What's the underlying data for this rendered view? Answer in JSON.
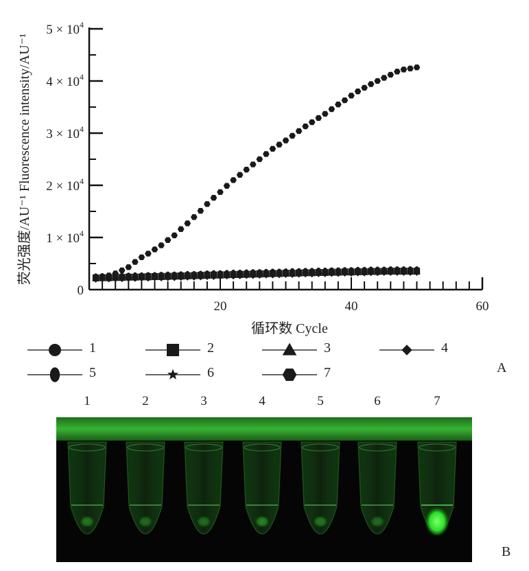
{
  "chart_data": {
    "type": "scatter",
    "xlabel": "循环数 Cycle",
    "ylabel": "荧光强度/AU⁻¹ Fluorescence  intensity/AU⁻¹",
    "xlim": [
      0,
      60
    ],
    "ylim": [
      0,
      50000
    ],
    "x_ticks": [
      20,
      40,
      60
    ],
    "x_tick_labels": [
      "20",
      "40",
      "60"
    ],
    "y_ticks": [
      0,
      10000,
      20000,
      30000,
      40000,
      50000
    ],
    "y_tick_labels": [
      {
        "base": "0",
        "exp": ""
      },
      {
        "base": "1 × 10",
        "exp": "4"
      },
      {
        "base": "2 × 10",
        "exp": "4"
      },
      {
        "base": "3 × 10",
        "exp": "4"
      },
      {
        "base": "4 × 10",
        "exp": "4"
      },
      {
        "base": "5 × 10",
        "exp": "4"
      }
    ],
    "grid": false,
    "marker_color": "#1a1a1a",
    "x": [
      1,
      2,
      3,
      4,
      5,
      6,
      7,
      8,
      9,
      10,
      11,
      12,
      13,
      14,
      15,
      16,
      17,
      18,
      19,
      20,
      21,
      22,
      23,
      24,
      25,
      26,
      27,
      28,
      29,
      30,
      31,
      32,
      33,
      34,
      35,
      36,
      37,
      38,
      39,
      40,
      41,
      42,
      43,
      44,
      45,
      46,
      47,
      48,
      49,
      50
    ],
    "series": [
      {
        "name": "1",
        "marker": "circle",
        "values": [
          2200,
          2250,
          2300,
          2300,
          2350,
          2350,
          2400,
          2400,
          2450,
          2450,
          2500,
          2500,
          2550,
          2600,
          2600,
          2650,
          2700,
          2700,
          2750,
          2800,
          2800,
          2850,
          2900,
          2900,
          2950,
          3000,
          3000,
          3050,
          3100,
          3100,
          3150,
          3150,
          3200,
          3200,
          3250,
          3300,
          3300,
          3350,
          3350,
          3400,
          3400,
          3450,
          3450,
          3500,
          3500,
          3500,
          3550,
          3550,
          3550,
          3550
        ]
      },
      {
        "name": "2",
        "marker": "square",
        "values": [
          2300,
          2350,
          2350,
          2400,
          2400,
          2450,
          2450,
          2500,
          2550,
          2550,
          2600,
          2600,
          2650,
          2700,
          2700,
          2750,
          2800,
          2850,
          2850,
          2900,
          2900,
          2950,
          3000,
          3000,
          3050,
          3100,
          3100,
          3150,
          3150,
          3200,
          3200,
          3250,
          3300,
          3300,
          3350,
          3350,
          3400,
          3400,
          3450,
          3450,
          3500,
          3500,
          3550,
          3550,
          3550,
          3600,
          3600,
          3600,
          3600,
          3600
        ]
      },
      {
        "name": "3",
        "marker": "triangle",
        "values": [
          2100,
          2150,
          2150,
          2200,
          2200,
          2250,
          2250,
          2300,
          2300,
          2350,
          2350,
          2400,
          2450,
          2450,
          2500,
          2550,
          2550,
          2600,
          2650,
          2650,
          2700,
          2750,
          2750,
          2800,
          2850,
          2850,
          2900,
          2950,
          2950,
          3000,
          3000,
          3050,
          3100,
          3100,
          3150,
          3150,
          3200,
          3200,
          3250,
          3250,
          3300,
          3300,
          3350,
          3350,
          3400,
          3400,
          3400,
          3400,
          3400,
          3400
        ]
      },
      {
        "name": "4",
        "marker": "diamond",
        "values": [
          2000,
          2050,
          2050,
          2100,
          2100,
          2150,
          2150,
          2200,
          2200,
          2250,
          2250,
          2300,
          2300,
          2350,
          2400,
          2400,
          2450,
          2500,
          2500,
          2550,
          2600,
          2600,
          2650,
          2700,
          2700,
          2750,
          2800,
          2800,
          2850,
          2900,
          2900,
          2950,
          3000,
          3000,
          3050,
          3050,
          3100,
          3100,
          3150,
          3150,
          3200,
          3200,
          3250,
          3250,
          3300,
          3300,
          3300,
          3300,
          3300,
          3300
        ]
      },
      {
        "name": "5",
        "marker": "ellipse",
        "values": [
          2400,
          2450,
          2450,
          2500,
          2500,
          2550,
          2600,
          2600,
          2650,
          2650,
          2700,
          2750,
          2750,
          2800,
          2850,
          2850,
          2900,
          2950,
          3000,
          3000,
          3050,
          3100,
          3100,
          3150,
          3200,
          3200,
          3250,
          3300,
          3300,
          3350,
          3400,
          3400,
          3450,
          3450,
          3500,
          3500,
          3550,
          3550,
          3600,
          3600,
          3650,
          3650,
          3700,
          3700,
          3700,
          3750,
          3750,
          3750,
          3750,
          3750
        ]
      },
      {
        "name": "6",
        "marker": "star",
        "values": [
          2150,
          2200,
          2200,
          2250,
          2250,
          2300,
          2300,
          2350,
          2350,
          2400,
          2400,
          2450,
          2450,
          2500,
          2550,
          2550,
          2600,
          2650,
          2650,
          2700,
          2750,
          2750,
          2800,
          2850,
          2850,
          2900,
          2950,
          2950,
          3000,
          3050,
          3050,
          3100,
          3150,
          3150,
          3200,
          3200,
          3250,
          3250,
          3300,
          3300,
          3350,
          3350,
          3400,
          3400,
          3450,
          3450,
          3450,
          3450,
          3450,
          3450
        ]
      },
      {
        "name": "7",
        "marker": "hexagon",
        "values": [
          2200,
          2400,
          2700,
          3100,
          3700,
          4300,
          5300,
          6200,
          6900,
          7700,
          8500,
          9500,
          10400,
          11600,
          12700,
          13900,
          15100,
          16400,
          17600,
          18700,
          19900,
          21000,
          22000,
          23000,
          24000,
          25000,
          26000,
          27000,
          27800,
          28600,
          29500,
          30400,
          31300,
          32100,
          32900,
          33700,
          34600,
          35500,
          36300,
          37200,
          38000,
          38700,
          39400,
          40000,
          40600,
          41200,
          41800,
          42200,
          42400,
          42600
        ]
      }
    ]
  },
  "legend": [
    {
      "marker": "circle",
      "label": "1"
    },
    {
      "marker": "square",
      "label": "2"
    },
    {
      "marker": "triangle",
      "label": "3"
    },
    {
      "marker": "diamond",
      "label": "4"
    },
    {
      "marker": "ellipse",
      "label": "5"
    },
    {
      "marker": "star",
      "label": "6"
    },
    {
      "marker": "hexagon",
      "label": "7"
    }
  ],
  "panel_labels": {
    "a": "A",
    "b": "B"
  },
  "photo": {
    "tube_numbers": [
      "1",
      "2",
      "3",
      "4",
      "5",
      "6",
      "7"
    ],
    "tube_glow": [
      0.35,
      0.3,
      0.3,
      0.4,
      0.35,
      0.3,
      1.0
    ],
    "background_color": "#050505",
    "rack_color": "#2fa52a",
    "glow_color": "#3cff3c"
  }
}
